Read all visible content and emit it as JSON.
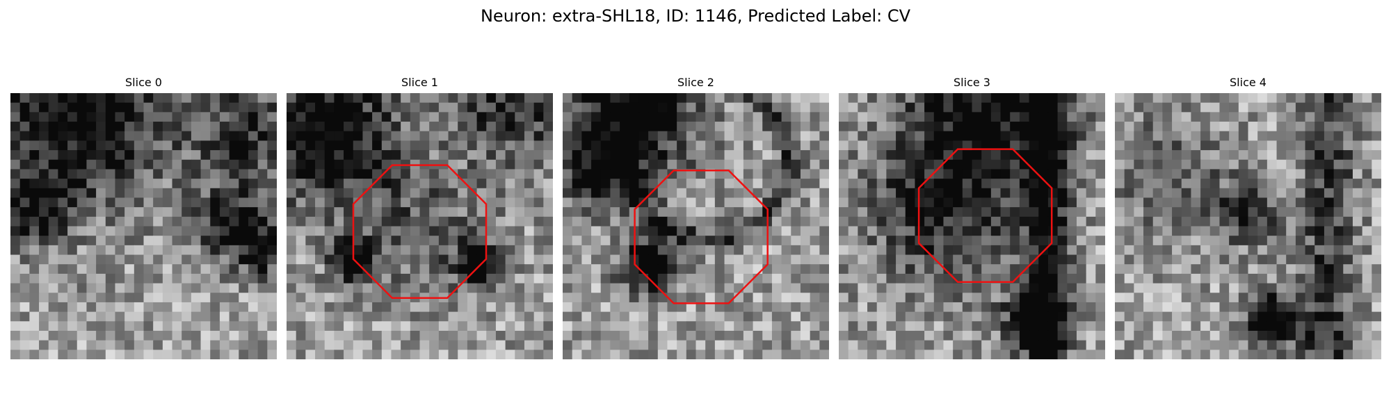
{
  "figure": {
    "title": "Neuron: extra-SHL18, ID: 1146, Predicted Label: CV"
  },
  "colors": {
    "roi_outline": "#ee1111",
    "colormap": "gray"
  },
  "image_grid": {
    "cols": 28,
    "rows": 28
  },
  "panels": [
    {
      "title": "Slice 0",
      "has_roi": false,
      "seed": 11
    },
    {
      "title": "Slice 1",
      "has_roi": true,
      "seed": 23
    },
    {
      "title": "Slice 2",
      "has_roi": true,
      "seed": 37
    },
    {
      "title": "Slice 3",
      "has_roi": true,
      "seed": 51
    },
    {
      "title": "Slice 4",
      "has_roi": false,
      "seed": 67
    }
  ]
}
